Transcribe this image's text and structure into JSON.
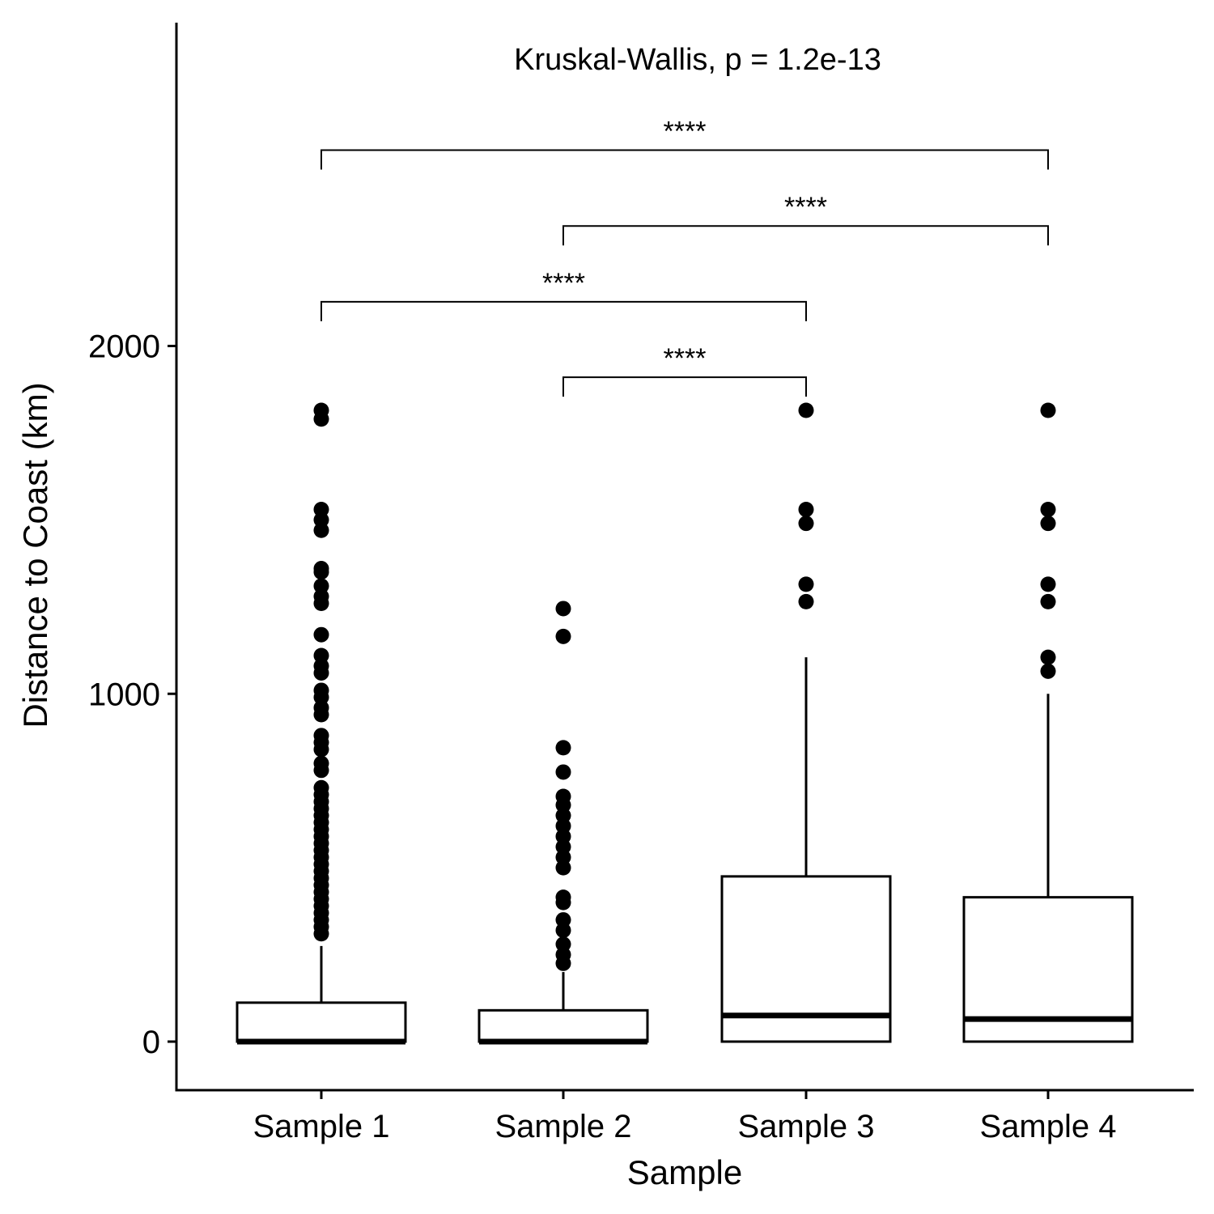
{
  "chart_data": {
    "type": "boxplot",
    "xlabel": "Sample",
    "ylabel": "Distance to Coast (km)",
    "categories": [
      "Sample 1",
      "Sample 2",
      "Sample 3",
      "Sample 4"
    ],
    "yticks": [
      0,
      1000,
      2000
    ],
    "yticklabels": [
      "0",
      "1000",
      "2000"
    ],
    "ylim": [
      -140,
      3070
    ],
    "grid": false,
    "legend": "none",
    "annotation": "Kruskal-Wallis, p = 1.2e-13",
    "boxes": [
      {
        "category": "Sample 1",
        "min": 0,
        "q1": 0,
        "median": 0,
        "q3": 112,
        "max": 275,
        "outliers": [
          1815,
          1790,
          1530,
          1500,
          1470,
          1360,
          1350,
          1310,
          1280,
          1260,
          1170,
          1110,
          1080,
          1060,
          1010,
          990,
          960,
          940,
          880,
          860,
          840,
          800,
          780,
          730,
          710,
          690,
          670,
          650,
          630,
          610,
          590,
          570,
          550,
          530,
          510,
          490,
          470,
          450,
          430,
          410,
          390,
          370,
          350,
          330,
          310
        ]
      },
      {
        "category": "Sample 2",
        "min": 0,
        "q1": 0,
        "median": 0,
        "q3": 90,
        "max": 200,
        "outliers": [
          1245,
          1165,
          845,
          775,
          705,
          680,
          650,
          620,
          590,
          560,
          530,
          500,
          415,
          400,
          350,
          320,
          280,
          250,
          225
        ]
      },
      {
        "category": "Sample 3",
        "min": 0,
        "q1": 0,
        "median": 75,
        "q3": 475,
        "max": 1105,
        "outliers": [
          1815,
          1530,
          1490,
          1315,
          1265
        ]
      },
      {
        "category": "Sample 4",
        "min": 0,
        "q1": 0,
        "median": 65,
        "q3": 415,
        "max": 1000,
        "outliers": [
          1815,
          1530,
          1490,
          1315,
          1265,
          1105,
          1065
        ]
      }
    ],
    "comparisons": [
      {
        "from": "Sample 2",
        "to": "Sample 3",
        "y": 1910,
        "label": "****"
      },
      {
        "from": "Sample 1",
        "to": "Sample 3",
        "y": 2127,
        "label": "****"
      },
      {
        "from": "Sample 2",
        "to": "Sample 4",
        "y": 2345,
        "label": "****"
      },
      {
        "from": "Sample 1",
        "to": "Sample 4",
        "y": 2563,
        "label": "****"
      }
    ]
  }
}
